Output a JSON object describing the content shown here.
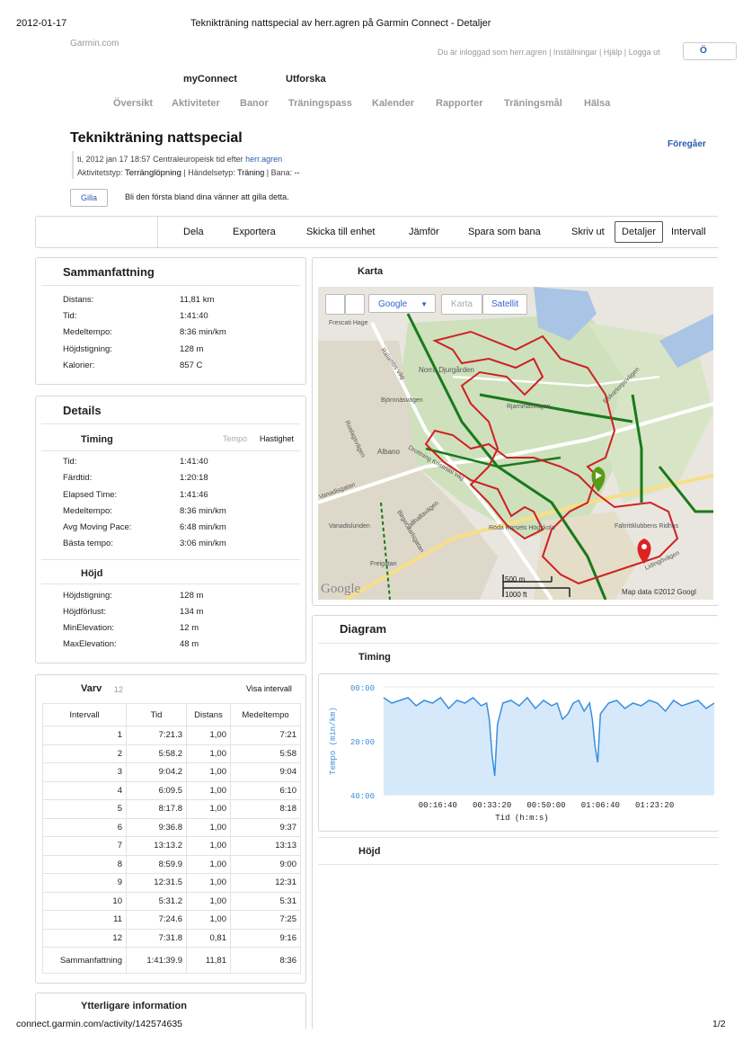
{
  "print_header": {
    "date": "2012-01-17",
    "title": "Teknikträning nattspecial av herr.agren på Garmin Connect - Detaljer",
    "url": "connect.garmin.com/activity/142574635",
    "page": "1/2"
  },
  "site": {
    "logo": "Garmin.com",
    "user_bar": "Du är inloggad som herr.agren | Inställningar | Hjälp | Logga ut",
    "user_btn": "Ö"
  },
  "nav": {
    "top": [
      "myConnect",
      "Utforska"
    ],
    "tabs": [
      "Översikt",
      "Aktiviteter",
      "Banor",
      "Träningspass",
      "Kalender",
      "Rapporter",
      "Träningsmål",
      "Hälsa"
    ]
  },
  "activity": {
    "title": "Teknikträning nattspecial",
    "prev_link": "Föregåer",
    "meta_prefix": "ti, 2012 jan 17 18:57 Centraleuropeisk tid efter ",
    "meta_user": "herr.agren",
    "type_label": "Aktivitetstyp: ",
    "type_value": "Terränglöpning",
    "event_label": " | Händelsetyp: ",
    "event_value": "Träning",
    "course_label": " | Bana: ",
    "course_value": "--",
    "like_btn": "Gilla",
    "like_text": "Bli den första bland dina vänner att gilla detta."
  },
  "toolbar": [
    "Dela",
    "Exportera",
    "Skicka till enhet",
    "Jämför",
    "Spara som bana",
    "Skriv ut",
    "Detaljer",
    "Intervall"
  ],
  "summary": {
    "title": "Sammanfattning",
    "rows": [
      {
        "k": "Distans:",
        "v": "11,81 km"
      },
      {
        "k": "Tid:",
        "v": "1:41:40"
      },
      {
        "k": "Medeltempo:",
        "v": "8:36 min/km"
      },
      {
        "k": "Höjdstigning:",
        "v": "128 m"
      },
      {
        "k": "Kalorier:",
        "v": "857 C"
      }
    ]
  },
  "details": {
    "title": "Details",
    "timing_title": "Timing",
    "toggle_a": "Tempo",
    "toggle_b": "Hastighet",
    "timing_rows": [
      {
        "k": "Tid:",
        "v": "1:41:40"
      },
      {
        "k": "Färdtid:",
        "v": "1:20:18"
      },
      {
        "k": "Elapsed Time:",
        "v": "1:41:46"
      },
      {
        "k": "Medeltempo:",
        "v": "8:36 min/km"
      },
      {
        "k": "Avg Moving Pace:",
        "v": "6:48 min/km"
      },
      {
        "k": "Bästa tempo:",
        "v": "3:06 min/km"
      }
    ],
    "height_title": "Höjd",
    "height_rows": [
      {
        "k": "Höjdstigning:",
        "v": "128 m"
      },
      {
        "k": "Höjdförlust:",
        "v": "134 m"
      },
      {
        "k": "MinElevation:",
        "v": "12 m"
      },
      {
        "k": "MaxElevation:",
        "v": "48 m"
      }
    ]
  },
  "laps": {
    "title": "Varv",
    "count": "12",
    "link": "Visa intervall",
    "headers": [
      "Intervall",
      "Tid",
      "Distans",
      "Medeltempo"
    ],
    "rows": [
      [
        "1",
        "7:21.3",
        "1,00",
        "7:21"
      ],
      [
        "2",
        "5:58.2",
        "1,00",
        "5:58"
      ],
      [
        "3",
        "9:04.2",
        "1,00",
        "9:04"
      ],
      [
        "4",
        "6:09.5",
        "1,00",
        "6:10"
      ],
      [
        "5",
        "8:17.8",
        "1,00",
        "8:18"
      ],
      [
        "6",
        "9:36.8",
        "1,00",
        "9:37"
      ],
      [
        "7",
        "13:13.2",
        "1,00",
        "13:13"
      ],
      [
        "8",
        "8:59.9",
        "1,00",
        "9:00"
      ],
      [
        "9",
        "12:31.5",
        "1,00",
        "12:31"
      ],
      [
        "10",
        "5:31.2",
        "1,00",
        "5:31"
      ],
      [
        "11",
        "7:24.6",
        "1,00",
        "7:25"
      ],
      [
        "12",
        "7:31.8",
        "0,81",
        "9:16"
      ],
      [
        "Sammanfattning",
        "1:41:39.9",
        "11,81",
        "8:36"
      ]
    ]
  },
  "more_info": {
    "title": "Ytterligare information"
  },
  "map": {
    "title": "Karta",
    "provider": "Google",
    "btn_map": "Karta",
    "btn_sat": "Satellit",
    "scale_m": "500 m",
    "scale_ft": "1000 ft",
    "attribution": "Map data ©2012 Googl",
    "labels": [
      "Frescati Hage",
      "Ralambs väg",
      "Norra Djurgården",
      "Björnnäsvägen",
      "Rjarninäsvägen",
      "Fiskartorpsvägen",
      "Albano",
      "Drottning Kristinas väg",
      "Roslagsvägen",
      "Vanadislunden",
      "Vallhallavägen",
      "Birger Jarlsgatan",
      "Röda Korsets Högskola",
      "Freigatan",
      "Faltrittklubbens Ridhus",
      "Lidingövägen",
      "Vanadisgatan"
    ]
  },
  "diagram": {
    "title": "Diagram",
    "timing_title": "Timing",
    "height_title": "Höjd"
  },
  "chart_data": {
    "type": "area",
    "title": "Timing",
    "xlabel": "Tid (h:m:s)",
    "ylabel": "Tempo (min/km)",
    "y_ticks": [
      "00:00",
      "20:00",
      "40:00"
    ],
    "x_ticks": [
      "00:16:40",
      "00:33:20",
      "00:50:00",
      "01:06:40",
      "01:23:20"
    ],
    "xlim": [
      0,
      6100
    ],
    "ylim": [
      40,
      0
    ],
    "line_color": "#3a8ee0",
    "fill_color": "#d6e9fb",
    "x": [
      0,
      150,
      300,
      450,
      600,
      750,
      900,
      1050,
      1200,
      1350,
      1500,
      1650,
      1800,
      1900,
      1950,
      2000,
      2050,
      2100,
      2200,
      2350,
      2500,
      2650,
      2800,
      2950,
      3100,
      3200,
      3300,
      3400,
      3500,
      3600,
      3700,
      3800,
      3850,
      3900,
      3950,
      4000,
      4150,
      4300,
      4450,
      4600,
      4750,
      4900,
      5050,
      5200,
      5350,
      5500,
      5650,
      5800,
      5950,
      6100
    ],
    "y": [
      4,
      6,
      5,
      4,
      7,
      5,
      6,
      4,
      8,
      5,
      6,
      4,
      7,
      6,
      12,
      25,
      33,
      14,
      6,
      5,
      7,
      4,
      8,
      5,
      7,
      6,
      12,
      10,
      6,
      5,
      9,
      6,
      12,
      22,
      28,
      10,
      6,
      5,
      8,
      6,
      7,
      5,
      6,
      9,
      5,
      7,
      6,
      5,
      8,
      6
    ]
  }
}
